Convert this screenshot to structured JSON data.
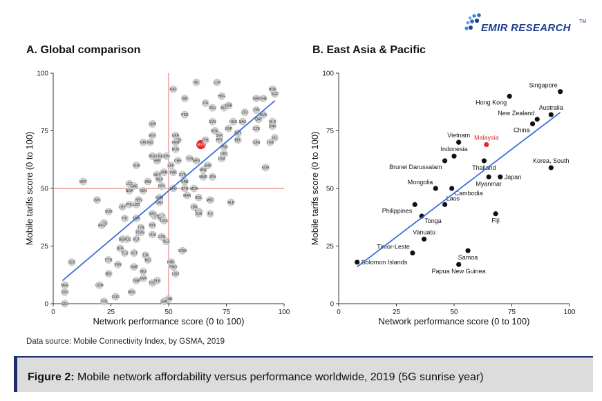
{
  "header": {
    "brand": "EMIR RESEARCH",
    "brand_tm": "TM",
    "logo_icon": "emir-dots-logo-icon",
    "brand_color": "#1d3f8f"
  },
  "source_note": "Data source: Mobile Connectivity Index, by GSMA, 2019",
  "caption": {
    "label": "Figure 2:",
    "text": " Mobile network affordability versus performance worldwide, 2019 (5G sunrise year)"
  },
  "colors": {
    "trend": "#3a6fd8",
    "crosshair": "#e46060",
    "highlight": "#e02b2b",
    "dot_gray": "#cfcfcf",
    "dot_black": "#111111",
    "caption_bg": "#dcdcdc",
    "caption_border": "#1d2e6e"
  },
  "chart_data": [
    {
      "type": "scatter",
      "title": "A. Global comparison",
      "xlabel": "Network performance score (0 to 100)",
      "ylabel": "Mobile tarifs score (0 to 100)",
      "xlim": [
        0,
        100
      ],
      "ylim": [
        0,
        100
      ],
      "xticks": [
        "0",
        "25",
        "50",
        "75",
        "100"
      ],
      "yticks": [
        "0",
        "25",
        "50",
        "75",
        "100"
      ],
      "grid": false,
      "crosshair": {
        "x": 50,
        "y": 50
      },
      "trendline": [
        [
          4,
          10
        ],
        [
          96,
          88
        ]
      ],
      "highlight": "MYS",
      "points": [
        {
          "label": "KAZ",
          "x": 52,
          "y": 93
        },
        {
          "label": "IRL",
          "x": 62,
          "y": 96
        },
        {
          "label": "LUX",
          "x": 71,
          "y": 96
        },
        {
          "label": "NOR",
          "x": 95,
          "y": 93
        },
        {
          "label": "SGP",
          "x": 96,
          "y": 91
        },
        {
          "label": "HKG",
          "x": 73,
          "y": 90
        },
        {
          "label": "SWE",
          "x": 88,
          "y": 89
        },
        {
          "label": "CHE",
          "x": 91,
          "y": 89
        },
        {
          "label": "ISR",
          "x": 57,
          "y": 89
        },
        {
          "label": "ITA",
          "x": 66,
          "y": 87
        },
        {
          "label": "DEU",
          "x": 69,
          "y": 85
        },
        {
          "label": "AUT",
          "x": 74,
          "y": 85
        },
        {
          "label": "GBR",
          "x": 76,
          "y": 86
        },
        {
          "label": "LTU",
          "x": 83,
          "y": 83
        },
        {
          "label": "FIN",
          "x": 88,
          "y": 84
        },
        {
          "label": "AUS",
          "x": 91,
          "y": 82
        },
        {
          "label": "PER",
          "x": 57,
          "y": 82
        },
        {
          "label": "SVN",
          "x": 69,
          "y": 79
        },
        {
          "label": "HUN",
          "x": 78,
          "y": 79
        },
        {
          "label": "SAU",
          "x": 82,
          "y": 79
        },
        {
          "label": "QAT",
          "x": 89,
          "y": 80
        },
        {
          "label": "NLD",
          "x": 95,
          "y": 79
        },
        {
          "label": "DNK",
          "x": 95,
          "y": 77
        },
        {
          "label": "UKR",
          "x": 43,
          "y": 78
        },
        {
          "label": "EGY",
          "x": 43,
          "y": 73
        },
        {
          "label": "ESP",
          "x": 76,
          "y": 76
        },
        {
          "label": "CZE",
          "x": 88,
          "y": 76
        },
        {
          "label": "TUR",
          "x": 94,
          "y": 70
        },
        {
          "label": "ISL",
          "x": 96,
          "y": 72
        },
        {
          "label": "ROU",
          "x": 70,
          "y": 75
        },
        {
          "label": "SVK",
          "x": 72,
          "y": 73
        },
        {
          "label": "EST",
          "x": 80,
          "y": 74
        },
        {
          "label": "CAN",
          "x": 88,
          "y": 70
        },
        {
          "label": "CRI",
          "x": 39,
          "y": 70
        },
        {
          "label": "IND",
          "x": 42,
          "y": 70
        },
        {
          "label": "UKR",
          "x": 53,
          "y": 73
        },
        {
          "label": "IRN",
          "x": 54,
          "y": 71
        },
        {
          "label": "VNM",
          "x": 53,
          "y": 70
        },
        {
          "label": "MYS",
          "x": 64,
          "y": 69
        },
        {
          "label": "BEL",
          "x": 80,
          "y": 71
        },
        {
          "label": "CHL",
          "x": 66,
          "y": 71
        },
        {
          "label": "PRT",
          "x": 72,
          "y": 71
        },
        {
          "label": "FRA",
          "x": 74,
          "y": 68
        },
        {
          "label": "RUS",
          "x": 53,
          "y": 67
        },
        {
          "label": "TUN",
          "x": 59,
          "y": 63
        },
        {
          "label": "ARG",
          "x": 62,
          "y": 62
        },
        {
          "label": "GRC",
          "x": 74,
          "y": 65
        },
        {
          "label": "USA",
          "x": 73,
          "y": 63
        },
        {
          "label": "BGD",
          "x": 43,
          "y": 64
        },
        {
          "label": "LKA",
          "x": 46,
          "y": 64
        },
        {
          "label": "IDN",
          "x": 49,
          "y": 64
        },
        {
          "label": "SRN",
          "x": 45,
          "y": 62
        },
        {
          "label": "GHA",
          "x": 36,
          "y": 60
        },
        {
          "label": "ZAF",
          "x": 51,
          "y": 60
        },
        {
          "label": "CHE",
          "x": 54,
          "y": 62
        },
        {
          "label": "KOR",
          "x": 92,
          "y": 59
        },
        {
          "label": "BHR",
          "x": 67,
          "y": 60
        },
        {
          "label": "MNE",
          "x": 65,
          "y": 58
        },
        {
          "label": "PAN",
          "x": 48,
          "y": 57
        },
        {
          "label": "PAK",
          "x": 52,
          "y": 57
        },
        {
          "label": "CYP",
          "x": 56,
          "y": 56
        },
        {
          "label": "JPN",
          "x": 69,
          "y": 55
        },
        {
          "label": "MMR",
          "x": 65,
          "y": 55
        },
        {
          "label": "MUS",
          "x": 45,
          "y": 56
        },
        {
          "label": "MEX",
          "x": 46,
          "y": 54
        },
        {
          "label": "SRB",
          "x": 57,
          "y": 53
        },
        {
          "label": "MRT",
          "x": 13,
          "y": 53
        },
        {
          "label": "LCA",
          "x": 33,
          "y": 52
        },
        {
          "label": "JAM",
          "x": 41,
          "y": 53
        },
        {
          "label": "GAB",
          "x": 35,
          "y": 51
        },
        {
          "label": "BTN",
          "x": 57,
          "y": 50
        },
        {
          "label": "MDA",
          "x": 61,
          "y": 50
        },
        {
          "label": "NGA",
          "x": 33,
          "y": 49
        },
        {
          "label": "KEN",
          "x": 39,
          "y": 49
        },
        {
          "label": "PRY",
          "x": 47,
          "y": 51
        },
        {
          "label": "LAO",
          "x": 52,
          "y": 50
        },
        {
          "label": "MAR",
          "x": 58,
          "y": 47
        },
        {
          "label": "BOL",
          "x": 63,
          "y": 46
        },
        {
          "label": "MKD",
          "x": 68,
          "y": 45
        },
        {
          "label": "ALB",
          "x": 77,
          "y": 44
        },
        {
          "label": "GIN",
          "x": 19,
          "y": 45
        },
        {
          "label": "SEN",
          "x": 37,
          "y": 45
        },
        {
          "label": "KHM",
          "x": 46,
          "y": 46
        },
        {
          "label": "CAO",
          "x": 46,
          "y": 44
        },
        {
          "label": "LBY",
          "x": 30,
          "y": 42
        },
        {
          "label": "PHL",
          "x": 33,
          "y": 43
        },
        {
          "label": "UZB",
          "x": 36,
          "y": 43
        },
        {
          "label": "SON",
          "x": 24,
          "y": 40
        },
        {
          "label": "LBN",
          "x": 61,
          "y": 42
        },
        {
          "label": "ECU",
          "x": 63,
          "y": 40
        },
        {
          "label": "JOR",
          "x": 63,
          "y": 39
        },
        {
          "label": "FJI",
          "x": 68,
          "y": 39
        },
        {
          "label": "HTI",
          "x": 31,
          "y": 37
        },
        {
          "label": "TON",
          "x": 36,
          "y": 37
        },
        {
          "label": "GUY",
          "x": 44,
          "y": 38
        },
        {
          "label": "SWZ",
          "x": 43,
          "y": 39
        },
        {
          "label": "SUR",
          "x": 47,
          "y": 38
        },
        {
          "label": "BOL",
          "x": 47,
          "y": 37
        },
        {
          "label": "UGA",
          "x": 48,
          "y": 36
        },
        {
          "label": "IRQ",
          "x": 22,
          "y": 35
        },
        {
          "label": "AFG",
          "x": 21,
          "y": 34
        },
        {
          "label": "TZA",
          "x": 38,
          "y": 33
        },
        {
          "label": "NPL",
          "x": 43,
          "y": 34
        },
        {
          "label": "TJK",
          "x": 37,
          "y": 31
        },
        {
          "label": "TMS",
          "x": 38,
          "y": 31
        },
        {
          "label": "UGA",
          "x": 43,
          "y": 30
        },
        {
          "label": "BEN",
          "x": 30,
          "y": 28
        },
        {
          "label": "MOZ",
          "x": 32,
          "y": 28
        },
        {
          "label": "VUT",
          "x": 36,
          "y": 28
        },
        {
          "label": "GTM",
          "x": 47,
          "y": 29
        },
        {
          "label": "BLZ",
          "x": 49,
          "y": 27
        },
        {
          "label": "BFA",
          "x": 29,
          "y": 24
        },
        {
          "label": "TLS",
          "x": 31,
          "y": 22
        },
        {
          "label": "VCT",
          "x": 35,
          "y": 22
        },
        {
          "label": "WSM",
          "x": 56,
          "y": 23
        },
        {
          "label": "TJK",
          "x": 40,
          "y": 21
        },
        {
          "label": "NIC",
          "x": 41,
          "y": 19
        },
        {
          "label": "ETH",
          "x": 24,
          "y": 19
        },
        {
          "label": "VEN",
          "x": 28,
          "y": 17
        },
        {
          "label": "GMB",
          "x": 35,
          "y": 16
        },
        {
          "label": "HND",
          "x": 51,
          "y": 18
        },
        {
          "label": "PNG",
          "x": 52,
          "y": 16
        },
        {
          "label": "SLB",
          "x": 8,
          "y": 18
        },
        {
          "label": "MLI",
          "x": 39,
          "y": 14
        },
        {
          "label": "LSO",
          "x": 53,
          "y": 13
        },
        {
          "label": "BDI",
          "x": 24,
          "y": 13
        },
        {
          "label": "ZWE",
          "x": 36,
          "y": 10
        },
        {
          "label": "MWI",
          "x": 39,
          "y": 11
        },
        {
          "label": "TGO",
          "x": 43,
          "y": 9
        },
        {
          "label": "SLE",
          "x": 45,
          "y": 10
        },
        {
          "label": "NER",
          "x": 5,
          "y": 8
        },
        {
          "label": "COM",
          "x": 20,
          "y": 8
        },
        {
          "label": "SSD",
          "x": 5,
          "y": 5
        },
        {
          "label": "MDG",
          "x": 34,
          "y": 5
        },
        {
          "label": "COD",
          "x": 27,
          "y": 3
        },
        {
          "label": "TCD",
          "x": 22,
          "y": 1
        },
        {
          "label": "GNB",
          "x": 50,
          "y": 2
        },
        {
          "label": "LBR",
          "x": 48,
          "y": 1
        },
        {
          "label": "ERI",
          "x": 5,
          "y": 0
        }
      ]
    },
    {
      "type": "scatter",
      "title": "B. East Asia & Pacific",
      "xlabel": "Network performance score (0 to 100)",
      "ylabel": "Mobile tarifs score (0 to 100)",
      "xlim": [
        0,
        100
      ],
      "ylim": [
        0,
        100
      ],
      "xticks": [
        "0",
        "25",
        "50",
        "75",
        "100"
      ],
      "yticks": [
        "0",
        "25",
        "50",
        "75",
        "100"
      ],
      "grid": false,
      "trendline": [
        [
          8,
          16
        ],
        [
          96,
          83
        ]
      ],
      "highlight": "Malaysia",
      "points": [
        {
          "label": "Singapore",
          "x": 96,
          "y": 92,
          "pos": "above-left"
        },
        {
          "label": "Hong Kong",
          "x": 74,
          "y": 90,
          "pos": "below-left"
        },
        {
          "label": "Australia",
          "x": 92,
          "y": 82,
          "pos": "above"
        },
        {
          "label": "New Zealand",
          "x": 86,
          "y": 80,
          "pos": "above-left"
        },
        {
          "label": "China",
          "x": 84,
          "y": 78,
          "pos": "below-left"
        },
        {
          "label": "Vietnam",
          "x": 52,
          "y": 70,
          "pos": "above"
        },
        {
          "label": "Malaysia",
          "x": 64,
          "y": 69,
          "pos": "above"
        },
        {
          "label": "Indonesia",
          "x": 50,
          "y": 64,
          "pos": "above"
        },
        {
          "label": "Brunei Darussalam",
          "x": 46,
          "y": 62,
          "pos": "below-left"
        },
        {
          "label": "Thailand",
          "x": 63,
          "y": 62,
          "pos": "below"
        },
        {
          "label": "Korea, South",
          "x": 92,
          "y": 59,
          "pos": "above"
        },
        {
          "label": "Japan",
          "x": 70,
          "y": 55,
          "pos": "right"
        },
        {
          "label": "Myanmar",
          "x": 65,
          "y": 55,
          "pos": "below"
        },
        {
          "label": "Mongolia",
          "x": 42,
          "y": 50,
          "pos": "above-left"
        },
        {
          "label": "Cambodia",
          "x": 49,
          "y": 50,
          "pos": "below-right"
        },
        {
          "label": "Laos",
          "x": 46,
          "y": 43,
          "pos": "above-right"
        },
        {
          "label": "Philippines",
          "x": 33,
          "y": 43,
          "pos": "below-left"
        },
        {
          "label": "Fiji",
          "x": 68,
          "y": 39,
          "pos": "below"
        },
        {
          "label": "Tonga",
          "x": 36,
          "y": 38,
          "pos": "below-right"
        },
        {
          "label": "Vanuatu",
          "x": 37,
          "y": 28,
          "pos": "above"
        },
        {
          "label": "Timor-Leste",
          "x": 32,
          "y": 22,
          "pos": "above-left"
        },
        {
          "label": "Samoa",
          "x": 56,
          "y": 23,
          "pos": "below"
        },
        {
          "label": "Solomon Islands",
          "x": 8,
          "y": 18,
          "pos": "right"
        },
        {
          "label": "Papua New Guinea",
          "x": 52,
          "y": 17,
          "pos": "below"
        }
      ]
    }
  ]
}
